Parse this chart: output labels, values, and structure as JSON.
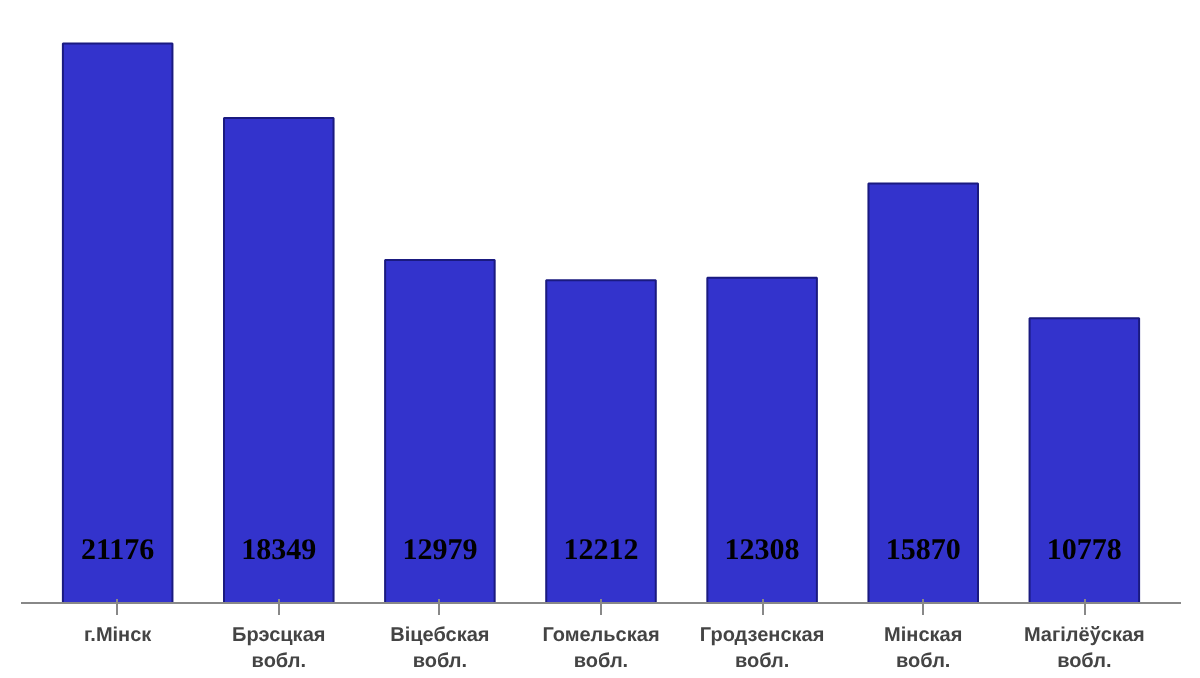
{
  "chart_data": {
    "type": "bar",
    "categories": [
      "г.Мінск",
      "Брэсцкая\nвобл.",
      "Віцебская\nвобл.",
      "Гомельская\nвобл.",
      "Гродзенская\nвобл.",
      "Мінская\nвобл.",
      "Магілёўская\nвобл."
    ],
    "values": [
      21176,
      18349,
      12979,
      12212,
      12308,
      15870,
      10778
    ],
    "color": "#3333cc",
    "data_labels": true
  }
}
